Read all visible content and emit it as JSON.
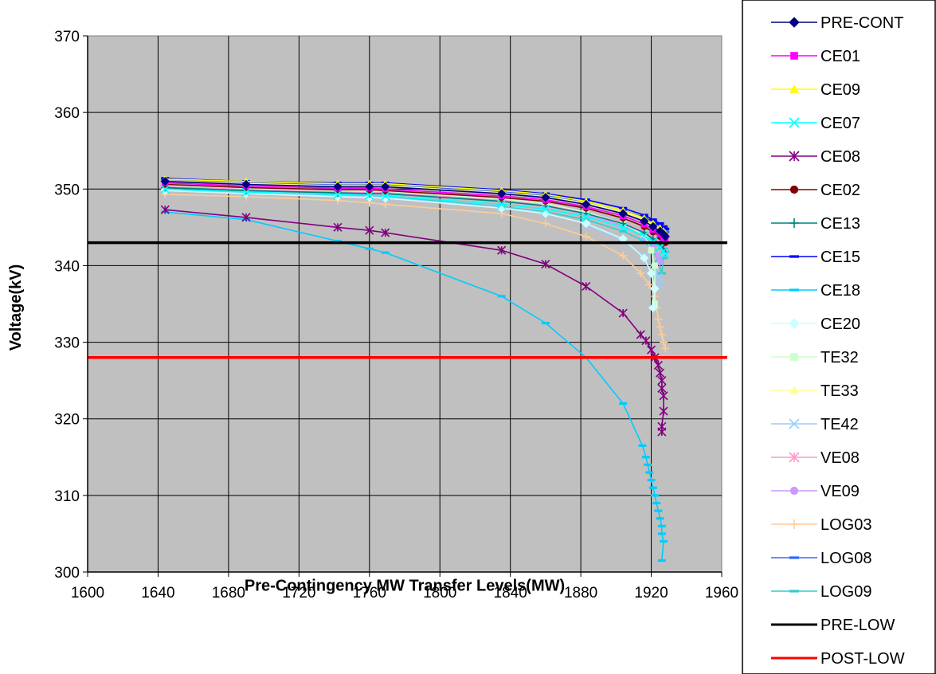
{
  "chart_data": {
    "type": "line",
    "title": "",
    "xlabel": "Pre-Contingency MW Transfer Levels(MW)",
    "ylabel": "Voltage(kV)",
    "xlim": [
      1600,
      1960
    ],
    "ylim": [
      300,
      370
    ],
    "x_ticks": [
      1600,
      1640,
      1680,
      1720,
      1760,
      1800,
      1840,
      1880,
      1920,
      1960
    ],
    "y_ticks": [
      300,
      310,
      320,
      330,
      340,
      350,
      360,
      370
    ],
    "grid": true,
    "plot_background": "#c0c0c0",
    "legend_position": "right",
    "series": [
      {
        "name": "PRE-CONT",
        "color": "#000080",
        "marker": "diamond",
        "x": [
          1644,
          1690,
          1742,
          1760,
          1769,
          1835,
          1860,
          1883,
          1904,
          1916,
          1921,
          1925,
          1927,
          1928
        ],
        "y": [
          351.0,
          350.6,
          350.3,
          350.3,
          350.3,
          349.4,
          348.9,
          348.0,
          346.8,
          345.8,
          345.1,
          344.5,
          344.1,
          343.8
        ]
      },
      {
        "name": "CE01",
        "color": "#ff00ff",
        "marker": "square",
        "x": [
          1644,
          1690,
          1742,
          1760,
          1769,
          1835,
          1860,
          1883,
          1904,
          1916,
          1921,
          1925,
          1927,
          1928
        ],
        "y": [
          350.8,
          350.4,
          350.1,
          350.1,
          350.0,
          349.1,
          348.6,
          347.7,
          346.5,
          345.4,
          344.7,
          344.1,
          343.6,
          343.3
        ]
      },
      {
        "name": "CE09",
        "color": "#ffff00",
        "marker": "triangle",
        "x": [
          1644,
          1690,
          1742,
          1760,
          1769,
          1835,
          1860,
          1883,
          1904,
          1916,
          1921,
          1925,
          1927,
          1928
        ],
        "y": [
          351.3,
          351.0,
          350.7,
          350.7,
          350.7,
          349.8,
          349.3,
          348.4,
          347.2,
          346.2,
          345.5,
          344.9,
          344.5,
          344.2
        ]
      },
      {
        "name": "CE07",
        "color": "#00ffff",
        "marker": "x",
        "x": [
          1644,
          1690,
          1742,
          1760,
          1769,
          1835,
          1860,
          1883,
          1904,
          1916,
          1921,
          1925,
          1927,
          1928
        ],
        "y": [
          350.0,
          349.6,
          349.3,
          349.2,
          349.1,
          348.0,
          347.4,
          346.4,
          345.0,
          343.9,
          343.1,
          342.4,
          341.9,
          341.5
        ]
      },
      {
        "name": "CE08",
        "color": "#800080",
        "marker": "star",
        "x": [
          1644,
          1690,
          1742,
          1760,
          1769,
          1835,
          1860,
          1883,
          1904,
          1914,
          1917,
          1920,
          1922,
          1924,
          1925,
          1926,
          1926,
          1927,
          1927,
          1926,
          1926
        ],
        "y": [
          347.3,
          346.3,
          345.0,
          344.6,
          344.3,
          342.0,
          340.2,
          337.3,
          333.8,
          331.0,
          330.2,
          329.0,
          328.0,
          327.0,
          326.0,
          325.0,
          324.0,
          323.0,
          321.0,
          319.0,
          318.3
        ]
      },
      {
        "name": "CE02",
        "color": "#800000",
        "marker": "circle",
        "x": [
          1644,
          1690,
          1742,
          1760,
          1769,
          1835,
          1860,
          1883,
          1904,
          1916,
          1921,
          1925,
          1927,
          1928
        ],
        "y": [
          350.6,
          350.2,
          349.9,
          349.9,
          349.8,
          348.9,
          348.4,
          347.5,
          346.2,
          345.1,
          344.4,
          343.8,
          343.3,
          343.0
        ]
      },
      {
        "name": "CE13",
        "color": "#008080",
        "marker": "plus",
        "x": [
          1644,
          1690,
          1742,
          1760,
          1769,
          1835,
          1860,
          1883,
          1904,
          1916,
          1921,
          1925,
          1927,
          1928
        ],
        "y": [
          350.2,
          349.8,
          349.5,
          349.4,
          349.4,
          348.4,
          347.8,
          346.8,
          345.5,
          344.3,
          343.5,
          342.8,
          342.2,
          341.8
        ]
      },
      {
        "name": "CE15",
        "color": "#0000ff",
        "marker": "dash",
        "x": [
          1644,
          1690,
          1742,
          1760,
          1769,
          1835,
          1860,
          1883,
          1904,
          1916,
          1921,
          1925,
          1927,
          1928
        ],
        "y": [
          351.4,
          351.0,
          350.8,
          350.8,
          350.8,
          349.9,
          349.4,
          348.6,
          347.5,
          346.6,
          346.0,
          345.5,
          345.1,
          344.8
        ]
      },
      {
        "name": "CE18",
        "color": "#00ccff",
        "marker": "dash",
        "x": [
          1644,
          1690,
          1742,
          1760,
          1769,
          1835,
          1860,
          1883,
          1904,
          1915,
          1917,
          1918,
          1919,
          1920,
          1921,
          1922,
          1923,
          1924,
          1925,
          1926,
          1926,
          1927,
          1926
        ],
        "y": [
          347.0,
          346.0,
          343.2,
          342.2,
          341.7,
          336.0,
          332.5,
          328.0,
          322.0,
          316.5,
          315.0,
          314.0,
          313.0,
          312.0,
          311.0,
          310.0,
          309.0,
          308.0,
          307.0,
          306.0,
          305.0,
          304.0,
          301.5
        ]
      },
      {
        "name": "CE20",
        "color": "#ccffff",
        "marker": "diamond",
        "x": [
          1644,
          1690,
          1742,
          1760,
          1769,
          1835,
          1860,
          1883,
          1904,
          1916,
          1920,
          1922,
          1921
        ],
        "y": [
          349.8,
          349.4,
          349.0,
          348.9,
          348.8,
          347.5,
          346.8,
          345.5,
          343.5,
          341.0,
          339.0,
          337.0,
          334.5
        ]
      },
      {
        "name": "TE32",
        "color": "#ccffcc",
        "marker": "square",
        "x": [
          1644,
          1690,
          1742,
          1760,
          1769,
          1835,
          1860,
          1883,
          1904,
          1916,
          1920,
          1922,
          1922
        ],
        "y": [
          350.5,
          350.1,
          349.8,
          349.7,
          349.7,
          348.7,
          348.1,
          347.0,
          345.5,
          344.0,
          342.0,
          340.0,
          335.0
        ]
      },
      {
        "name": "TE33",
        "color": "#ffff99",
        "marker": "triangle",
        "x": [
          1644,
          1690,
          1742,
          1760,
          1769,
          1835,
          1860,
          1883,
          1904,
          1916,
          1921,
          1925,
          1927,
          1928
        ],
        "y": [
          351.0,
          350.7,
          350.4,
          350.4,
          350.4,
          349.5,
          349.0,
          348.2,
          347.0,
          346.0,
          345.3,
          344.7,
          344.3,
          344.0
        ]
      },
      {
        "name": "TE42",
        "color": "#99ccff",
        "marker": "x",
        "x": [
          1644,
          1690,
          1742,
          1760,
          1769,
          1835,
          1860,
          1883,
          1904,
          1916,
          1921,
          1924,
          1925
        ],
        "y": [
          349.9,
          349.5,
          349.1,
          349.0,
          348.9,
          347.6,
          346.9,
          345.4,
          343.2,
          341.2,
          339.8,
          338.5,
          337.5
        ]
      },
      {
        "name": "VE08",
        "color": "#ff99cc",
        "marker": "star",
        "x": [
          1644,
          1690,
          1742,
          1760,
          1769,
          1835,
          1860,
          1883,
          1904,
          1916,
          1921,
          1925,
          1927,
          1928
        ],
        "y": [
          350.4,
          350.0,
          349.7,
          349.6,
          349.6,
          348.6,
          348.0,
          347.0,
          345.6,
          344.5,
          343.7,
          343.0,
          342.5,
          342.1
        ]
      },
      {
        "name": "VE09",
        "color": "#cc99ff",
        "marker": "circle",
        "x": [
          1644,
          1690,
          1742,
          1760,
          1769,
          1835,
          1860,
          1883,
          1904,
          1916,
          1921,
          1924,
          1925
        ],
        "y": [
          350.3,
          349.9,
          349.6,
          349.5,
          349.5,
          348.4,
          347.8,
          346.7,
          345.2,
          343.7,
          342.5,
          341.3,
          340.5
        ]
      },
      {
        "name": "LOG03",
        "color": "#ffcc99",
        "marker": "plus",
        "x": [
          1644,
          1690,
          1742,
          1760,
          1769,
          1835,
          1860,
          1883,
          1904,
          1914,
          1919,
          1922,
          1923,
          1924,
          1925,
          1926,
          1927,
          1928
        ],
        "y": [
          349.3,
          349.0,
          348.5,
          348.2,
          348.0,
          346.8,
          345.5,
          343.8,
          341.3,
          339.0,
          337.5,
          336.0,
          334.5,
          333.0,
          332.0,
          331.0,
          330.0,
          329.2
        ]
      },
      {
        "name": "LOG08",
        "color": "#3366ff",
        "marker": "dash",
        "x": [
          1644,
          1690,
          1742,
          1760,
          1769,
          1835,
          1860,
          1883,
          1904,
          1916,
          1921,
          1925,
          1927,
          1928
        ],
        "y": [
          351.3,
          350.9,
          350.6,
          350.6,
          350.6,
          349.7,
          349.2,
          348.3,
          347.2,
          346.3,
          345.7,
          345.1,
          344.7,
          344.4
        ]
      },
      {
        "name": "LOG09",
        "color": "#33cccc",
        "marker": "dash",
        "x": [
          1644,
          1690,
          1742,
          1760,
          1769,
          1835,
          1860,
          1883,
          1904,
          1916,
          1921,
          1924,
          1926,
          1927,
          1928
        ],
        "y": [
          350.0,
          349.6,
          349.2,
          349.1,
          349.0,
          347.7,
          347.0,
          346.0,
          344.5,
          343.2,
          342.0,
          340.5,
          339.0,
          341.0,
          341.8
        ]
      },
      {
        "name": "PRE-LOW",
        "color": "#000000",
        "marker": "none",
        "constant": 343
      },
      {
        "name": "POST-LOW",
        "color": "#ff0000",
        "marker": "none",
        "constant": 328
      }
    ]
  }
}
